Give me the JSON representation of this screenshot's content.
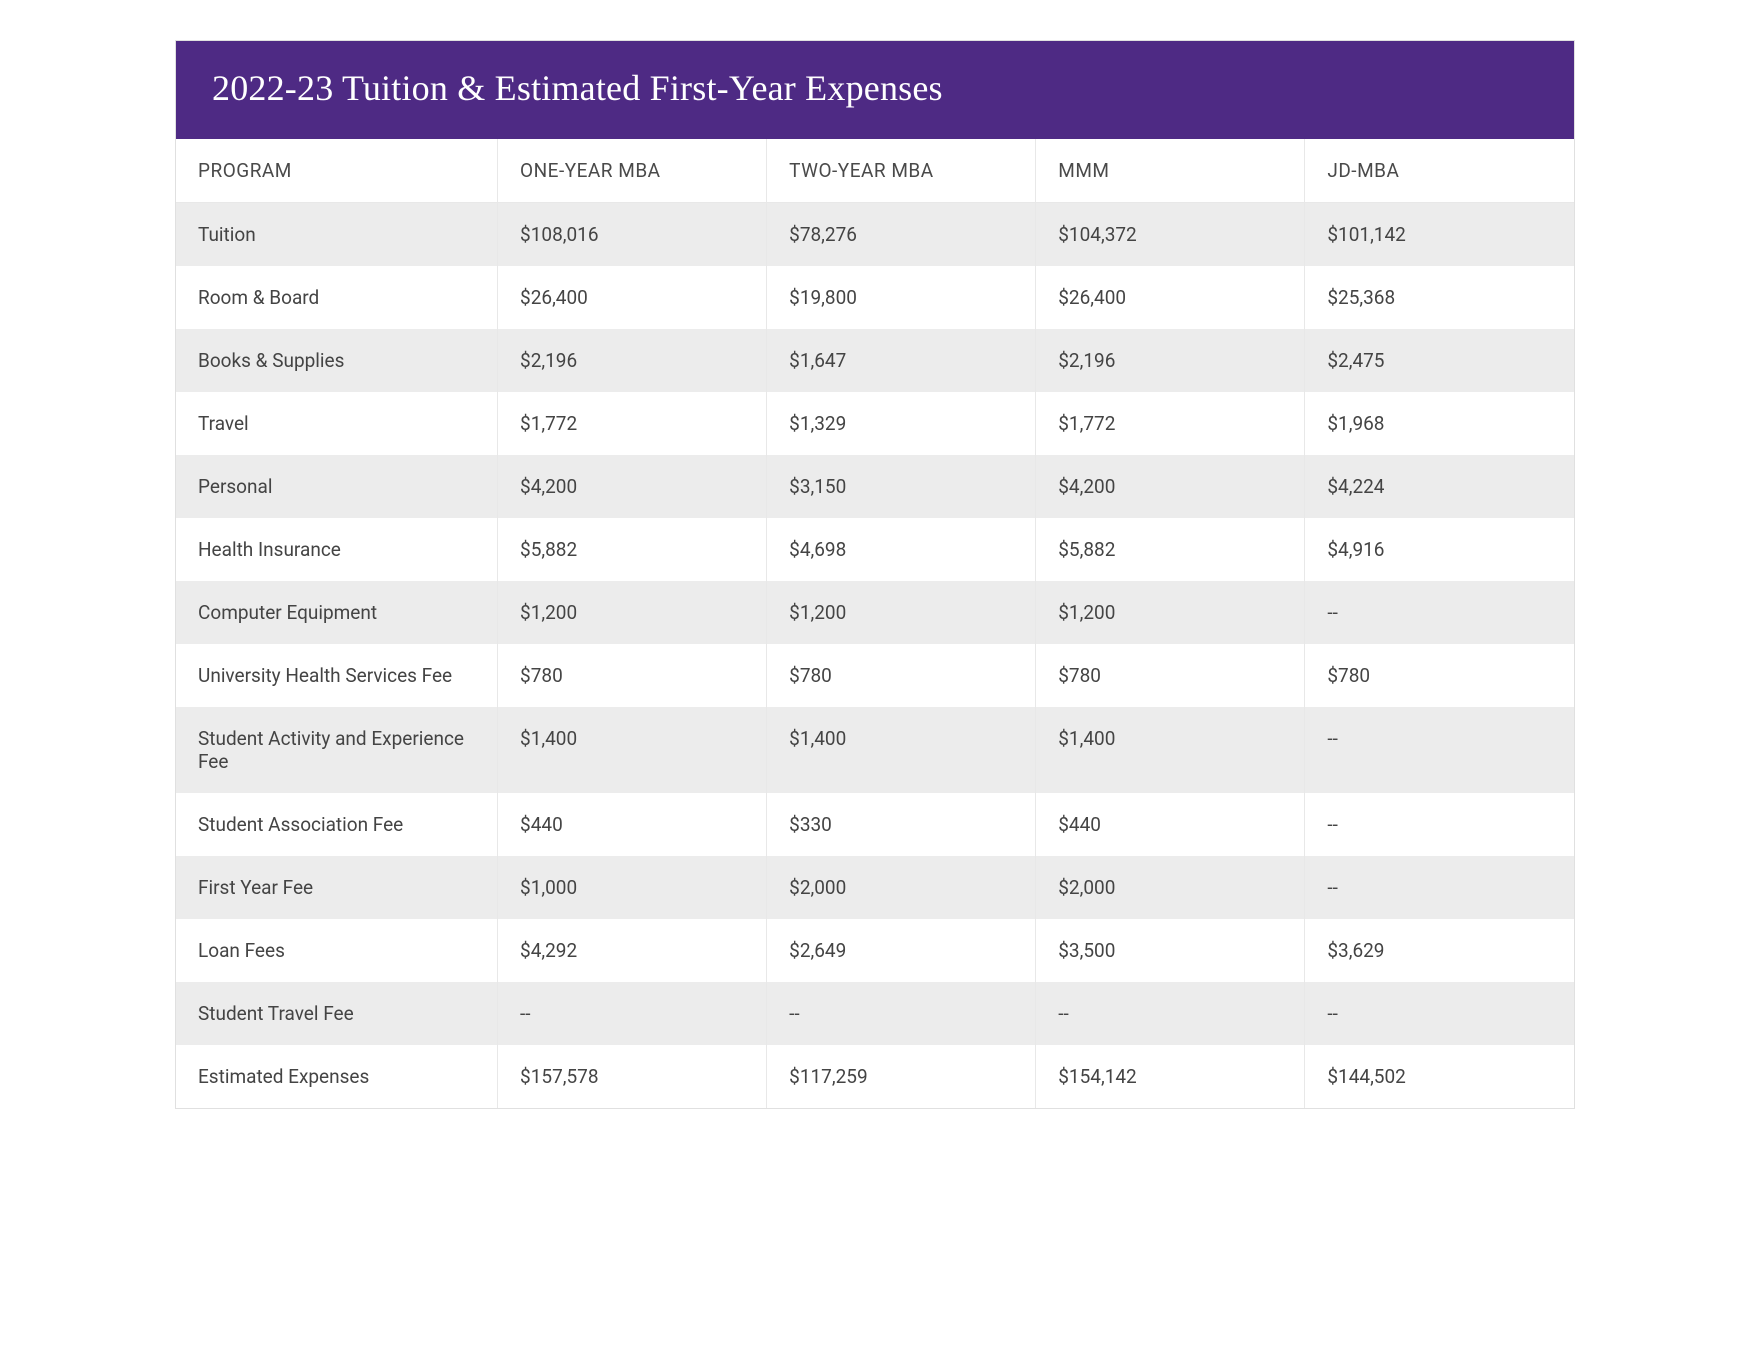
{
  "title": "2022-23 Tuition & Estimated First-Year Expenses",
  "colors": {
    "header_bg": "#4e2a84",
    "header_text": "#ffffff",
    "stripe_bg": "#ececec",
    "plain_bg": "#ffffff",
    "border": "#e8e8e8",
    "text": "#444444"
  },
  "columns": [
    "PROGRAM",
    "ONE-YEAR MBA",
    "TWO-YEAR MBA",
    "MMM",
    "JD-MBA"
  ],
  "rows": [
    {
      "label": "Tuition",
      "values": [
        "$108,016",
        "$78,276",
        "$104,372",
        "$101,142"
      ]
    },
    {
      "label": "Room & Board",
      "values": [
        "$26,400",
        "$19,800",
        "$26,400",
        "$25,368"
      ]
    },
    {
      "label": "Books & Supplies",
      "values": [
        "$2,196",
        "$1,647",
        "$2,196",
        "$2,475"
      ]
    },
    {
      "label": "Travel",
      "values": [
        "$1,772",
        "$1,329",
        "$1,772",
        "$1,968"
      ]
    },
    {
      "label": "Personal",
      "values": [
        "$4,200",
        "$3,150",
        "$4,200",
        "$4,224"
      ]
    },
    {
      "label": "Health Insurance",
      "values": [
        "$5,882",
        "$4,698",
        "$5,882",
        "$4,916"
      ]
    },
    {
      "label": "Computer Equipment",
      "values": [
        "$1,200",
        "$1,200",
        "$1,200",
        "--"
      ]
    },
    {
      "label": "University Health Services Fee",
      "values": [
        "$780",
        "$780",
        "$780",
        "$780"
      ]
    },
    {
      "label": "Student Activity and Experience Fee",
      "values": [
        "$1,400",
        "$1,400",
        "$1,400",
        "--"
      ]
    },
    {
      "label": "Student Association Fee",
      "values": [
        "$440",
        "$330",
        "$440",
        "--"
      ]
    },
    {
      "label": "First Year Fee",
      "values": [
        "$1,000",
        "$2,000",
        "$2,000",
        "--"
      ]
    },
    {
      "label": "Loan Fees",
      "values": [
        "$4,292",
        "$2,649",
        "$3,500",
        "$3,629"
      ]
    },
    {
      "label": "Student Travel Fee",
      "values": [
        "--",
        "--",
        "--",
        "--"
      ]
    },
    {
      "label": "Estimated Expenses",
      "values": [
        "$157,578",
        "$117,259",
        "$154,142",
        "$144,502"
      ]
    }
  ]
}
